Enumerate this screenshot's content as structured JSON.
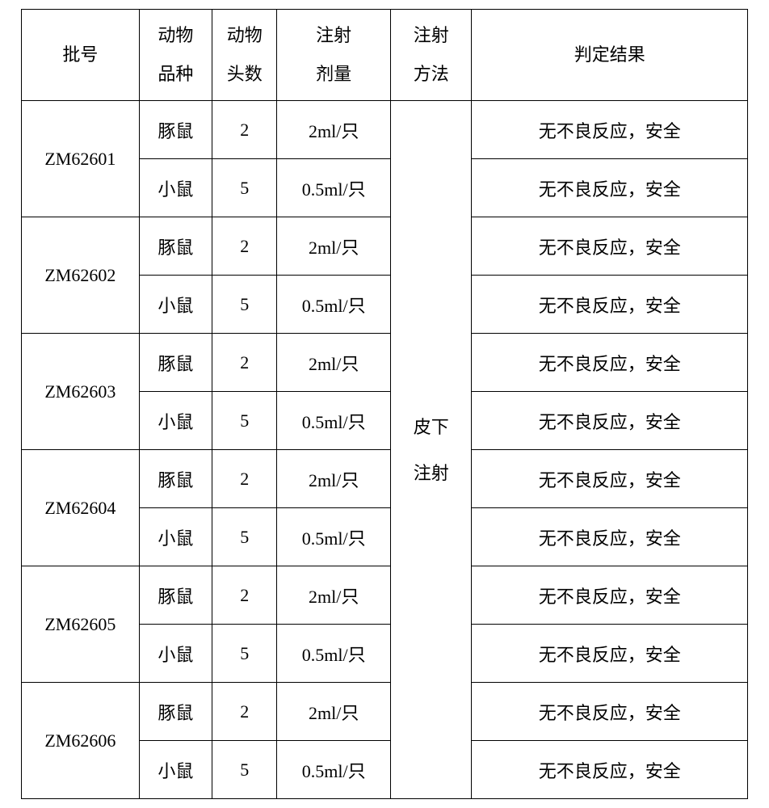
{
  "table": {
    "headers": {
      "batch": "批号",
      "species_line1": "动物",
      "species_line2": "品种",
      "count_line1": "动物",
      "count_line2": "头数",
      "dose_line1": "注射",
      "dose_line2": "剂量",
      "method_line1": "注射",
      "method_line2": "方法",
      "result": "判定结果"
    },
    "method_line1": "皮下",
    "method_line2": "注射",
    "batches": [
      {
        "id": "ZM62601",
        "rows": [
          {
            "species": "豚鼠",
            "count": "2",
            "dose": "2ml/只",
            "result": "无不良反应，安全"
          },
          {
            "species": "小鼠",
            "count": "5",
            "dose": "0.5ml/只",
            "result": "无不良反应，安全"
          }
        ]
      },
      {
        "id": "ZM62602",
        "rows": [
          {
            "species": "豚鼠",
            "count": "2",
            "dose": "2ml/只",
            "result": "无不良反应，安全"
          },
          {
            "species": "小鼠",
            "count": "5",
            "dose": "0.5ml/只",
            "result": "无不良反应，安全"
          }
        ]
      },
      {
        "id": "ZM62603",
        "rows": [
          {
            "species": "豚鼠",
            "count": "2",
            "dose": "2ml/只",
            "result": "无不良反应，安全"
          },
          {
            "species": "小鼠",
            "count": "5",
            "dose": "0.5ml/只",
            "result": "无不良反应，安全"
          }
        ]
      },
      {
        "id": "ZM62604",
        "rows": [
          {
            "species": "豚鼠",
            "count": "2",
            "dose": "2ml/只",
            "result": "无不良反应，安全"
          },
          {
            "species": "小鼠",
            "count": "5",
            "dose": "0.5ml/只",
            "result": "无不良反应，安全"
          }
        ]
      },
      {
        "id": "ZM62605",
        "rows": [
          {
            "species": "豚鼠",
            "count": "2",
            "dose": "2ml/只",
            "result": "无不良反应，安全"
          },
          {
            "species": "小鼠",
            "count": "5",
            "dose": "0.5ml/只",
            "result": "无不良反应，安全"
          }
        ]
      },
      {
        "id": "ZM62606",
        "rows": [
          {
            "species": "豚鼠",
            "count": "2",
            "dose": "2ml/只",
            "result": "无不良反应，安全"
          },
          {
            "species": "小鼠",
            "count": "5",
            "dose": "0.5ml/只",
            "result": "无不良反应，安全"
          }
        ]
      }
    ],
    "column_widths": {
      "batch": 145,
      "species": 90,
      "count": 80,
      "dose": 140,
      "method": 100,
      "result": 340
    },
    "border_color": "#000000",
    "background_color": "#ffffff",
    "text_color": "#000000",
    "font_size": 22,
    "header_row_height": 100,
    "data_row_height": 72
  }
}
